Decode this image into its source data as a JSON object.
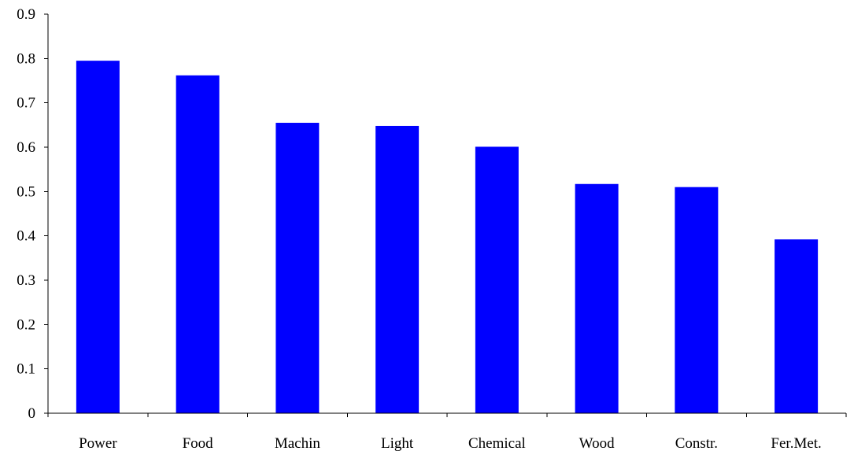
{
  "chart_data": {
    "type": "bar",
    "title": "",
    "xlabel": "",
    "ylabel": "",
    "categories": [
      "Power",
      "Food",
      "Machin",
      "Light",
      "Chemical",
      "Wood",
      "Constr.",
      "Fer.Met."
    ],
    "values": [
      0.795,
      0.762,
      0.655,
      0.648,
      0.601,
      0.517,
      0.51,
      0.392
    ],
    "ylim": [
      0,
      0.9
    ],
    "yticks": [
      0,
      0.1,
      0.2,
      0.3,
      0.4,
      0.5,
      0.6,
      0.7,
      0.8,
      0.9
    ],
    "ytick_labels": [
      "0",
      "0.1",
      "0.2",
      "0.3",
      "0.4",
      "0.5",
      "0.6",
      "0.7",
      "0.8",
      "0.9"
    ],
    "bar_color": "#0000ff",
    "grid": false,
    "legend": "none"
  }
}
